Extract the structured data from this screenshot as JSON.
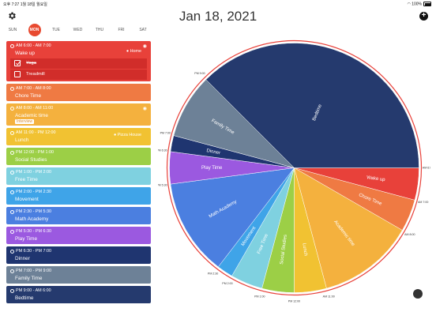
{
  "status": {
    "time": "오후 7:27",
    "date": "1월 18일 월요일",
    "battery": "100%"
  },
  "header": {
    "title": "Jan 18, 2021"
  },
  "week": [
    {
      "label": "SUN",
      "active": false
    },
    {
      "label": "MON",
      "active": true
    },
    {
      "label": "TUE",
      "active": false
    },
    {
      "label": "WED",
      "active": false
    },
    {
      "label": "THU",
      "active": false
    },
    {
      "label": "FRI",
      "active": false
    },
    {
      "label": "SAT",
      "active": false
    }
  ],
  "events": [
    {
      "time": "AM 6:00 - AM 7:00",
      "name": "Wake up",
      "location": "Home",
      "color": "#e8413a",
      "subtasks": [
        {
          "label": "Yoga",
          "done": true
        },
        {
          "label": "Treadmill",
          "done": false
        }
      ]
    },
    {
      "time": "AM 7:00 - AM 8:00",
      "name": "Chore Time",
      "color": "#ef7a43"
    },
    {
      "time": "AM 8:00 - AM 11:00",
      "name": "Academic time",
      "tag": "Interview",
      "color": "#f4b13e"
    },
    {
      "time": "AM 11:00 - PM 12:00",
      "name": "Lunch",
      "location": "Pizza House",
      "color": "#f1c232"
    },
    {
      "time": "PM 12:00 - PM 1:00",
      "name": "Social Studies",
      "color": "#9ccf46"
    },
    {
      "time": "PM 1:00 - PM 2:00",
      "name": "Free Time",
      "color": "#7fd1e0"
    },
    {
      "time": "PM 2:00 - PM 2:30",
      "name": "Movement",
      "color": "#3fa4e8"
    },
    {
      "time": "PM 2:30 - PM 5:30",
      "name": "Math Academy",
      "color": "#4b7fe0"
    },
    {
      "time": "PM 5:30 - PM 6:30",
      "name": "Play Time",
      "color": "#9b59e0"
    },
    {
      "time": "PM 6:30 - PM 7:00",
      "name": "Dinner",
      "color": "#1f3570"
    },
    {
      "time": "PM 7:00 - PM 9:00",
      "name": "Family Time",
      "color": "#6d8197"
    },
    {
      "time": "PM 9:00 - AM 6:00",
      "name": "Bedtime",
      "color": "#253a6e"
    }
  ],
  "chart_data": {
    "type": "pie",
    "unit": "hours",
    "slices": [
      {
        "label": "Wake up",
        "start": 6,
        "end": 7,
        "color": "#e8413a"
      },
      {
        "label": "Chore Time",
        "start": 7,
        "end": 8,
        "color": "#ef7a43"
      },
      {
        "label": "Academic time",
        "start": 8,
        "end": 11,
        "color": "#f4b13e"
      },
      {
        "label": "Lunch",
        "start": 11,
        "end": 12,
        "color": "#f1c232"
      },
      {
        "label": "Social Studies",
        "start": 12,
        "end": 13,
        "color": "#9ccf46"
      },
      {
        "label": "Free Time",
        "start": 13,
        "end": 14,
        "color": "#7fd1e0"
      },
      {
        "label": "Movement",
        "start": 14,
        "end": 14.5,
        "color": "#3fa4e8"
      },
      {
        "label": "Math Academy",
        "start": 14.5,
        "end": 17.5,
        "color": "#4b7fe0"
      },
      {
        "label": "Play Time",
        "start": 17.5,
        "end": 18.5,
        "color": "#9b59e0"
      },
      {
        "label": "Dinner",
        "start": 18.5,
        "end": 19,
        "color": "#1f3570"
      },
      {
        "label": "Family Time",
        "start": 19,
        "end": 21,
        "color": "#6d8197"
      },
      {
        "label": "Bedtime",
        "start": 21,
        "end": 30,
        "color": "#253a6e"
      }
    ],
    "rim_color": "#e8413a",
    "tick_labels": [
      {
        "text": "PM 9:00",
        "h": 21
      },
      {
        "text": "AM 6:00",
        "h": 30
      },
      {
        "text": "AM 7:00",
        "h": 31
      },
      {
        "text": "AM 8:00",
        "h": 32
      },
      {
        "text": "AM 11:00",
        "h": 35
      },
      {
        "text": "PM 12:00",
        "h": 36
      },
      {
        "text": "PM 1:00",
        "h": 37
      },
      {
        "text": "PM 2:00",
        "h": 38
      },
      {
        "text": "PM 2:30",
        "h": 38.5
      },
      {
        "text": "PM 5:30",
        "h": 41.5
      },
      {
        "text": "PM 6:30",
        "h": 42.5
      },
      {
        "text": "PM 7:00",
        "h": 43
      }
    ]
  }
}
